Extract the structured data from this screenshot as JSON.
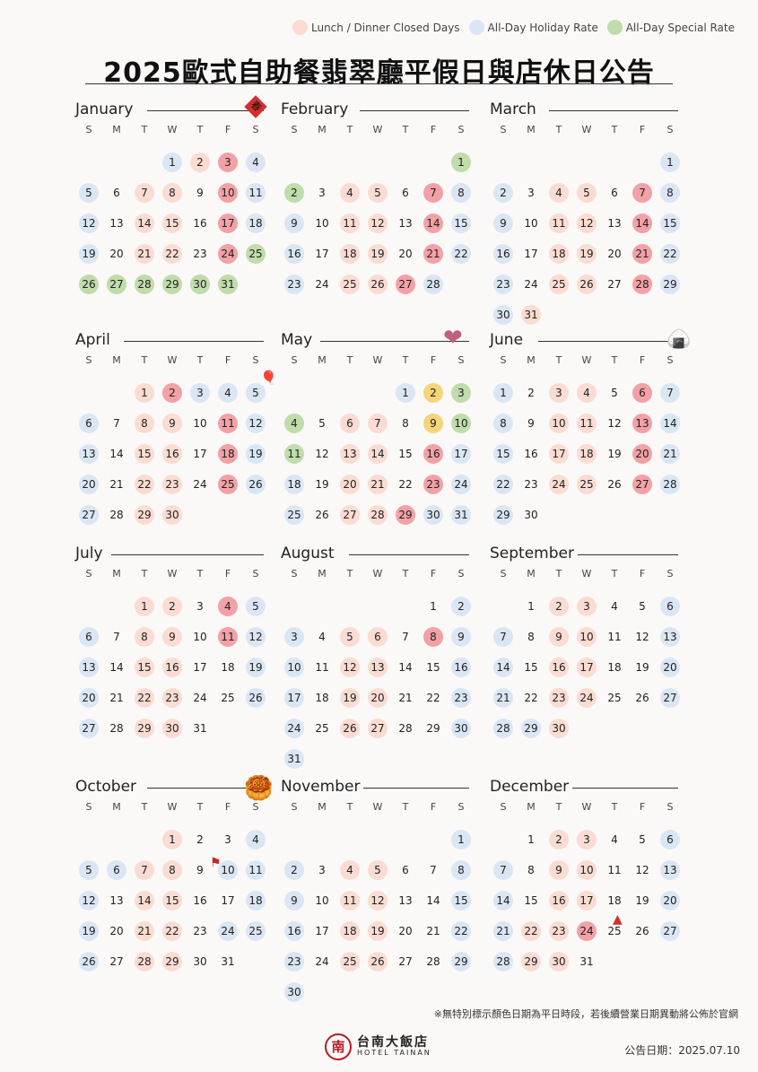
{
  "legend": [
    {
      "label": "Lunch / Dinner Closed Days",
      "color": "#fbdcd2"
    },
    {
      "label": "All-Day Holiday Rate",
      "color": "#dae6f4"
    },
    {
      "label": "All-Day Special Rate",
      "color": "#bfdcaa"
    }
  ],
  "title": "2025歐式自助餐翡翠廳平假日與店休日公告",
  "weekdays": [
    "S",
    "M",
    "T",
    "W",
    "T",
    "F",
    "S"
  ],
  "months": [
    {
      "name": "January",
      "start": 3,
      "days": 31,
      "closed": [
        2,
        7,
        8,
        14,
        15,
        21,
        22
      ],
      "holiday": [
        1,
        4,
        5,
        11,
        12,
        18,
        19
      ],
      "special": [
        25,
        26,
        27,
        28,
        29,
        30,
        31
      ],
      "red": [
        3,
        10,
        17,
        24
      ],
      "gold": []
    },
    {
      "name": "February",
      "start": 6,
      "days": 28,
      "closed": [
        4,
        5,
        11,
        12,
        18,
        19,
        25,
        26
      ],
      "holiday": [
        8,
        9,
        15,
        16,
        22,
        23,
        28
      ],
      "special": [
        1,
        2
      ],
      "red": [
        7,
        14,
        21,
        27
      ],
      "gold": []
    },
    {
      "name": "March",
      "start": 6,
      "days": 31,
      "closed": [
        4,
        5,
        11,
        12,
        18,
        19,
        25,
        26,
        31
      ],
      "holiday": [
        1,
        2,
        8,
        9,
        15,
        16,
        22,
        23,
        29,
        30
      ],
      "special": [],
      "red": [
        7,
        14,
        21,
        28
      ],
      "gold": []
    },
    {
      "name": "April",
      "start": 2,
      "days": 30,
      "closed": [
        1,
        8,
        9,
        15,
        16,
        22,
        23,
        29,
        30
      ],
      "holiday": [
        3,
        4,
        5,
        6,
        12,
        13,
        19,
        20,
        26,
        27
      ],
      "special": [],
      "red": [
        2,
        11,
        18,
        25
      ],
      "gold": []
    },
    {
      "name": "May",
      "start": 4,
      "days": 31,
      "closed": [
        6,
        7,
        13,
        14,
        20,
        21,
        27,
        28
      ],
      "holiday": [
        1,
        17,
        18,
        24,
        25,
        30,
        31
      ],
      "special": [
        3,
        4,
        10,
        11
      ],
      "red": [
        16,
        23,
        29
      ],
      "gold": [
        2,
        9
      ]
    },
    {
      "name": "June",
      "start": 0,
      "days": 30,
      "closed": [
        3,
        4,
        10,
        11,
        17,
        18,
        24,
        25
      ],
      "holiday": [
        1,
        7,
        8,
        14,
        15,
        21,
        22,
        28,
        29
      ],
      "special": [],
      "red": [
        6,
        13,
        20,
        27
      ],
      "gold": []
    },
    {
      "name": "July",
      "start": 2,
      "days": 31,
      "closed": [
        1,
        2,
        8,
        9,
        15,
        16,
        22,
        23,
        29,
        30
      ],
      "holiday": [
        5,
        6,
        12,
        13,
        19,
        20,
        26,
        27
      ],
      "special": [],
      "red": [
        4,
        11
      ],
      "gold": []
    },
    {
      "name": "August",
      "start": 5,
      "days": 31,
      "closed": [
        5,
        6,
        12,
        13,
        19,
        20,
        26,
        27
      ],
      "holiday": [
        2,
        3,
        9,
        10,
        16,
        17,
        23,
        24,
        30,
        31
      ],
      "special": [],
      "red": [
        8
      ],
      "gold": []
    },
    {
      "name": "September",
      "start": 1,
      "days": 30,
      "closed": [
        2,
        3,
        9,
        10,
        16,
        17,
        23,
        24,
        30
      ],
      "holiday": [
        6,
        7,
        13,
        14,
        20,
        21,
        27,
        28,
        29
      ],
      "special": [],
      "red": [],
      "gold": []
    },
    {
      "name": "October",
      "start": 3,
      "days": 31,
      "closed": [
        1,
        7,
        8,
        14,
        15,
        21,
        22,
        28,
        29
      ],
      "holiday": [
        4,
        5,
        6,
        10,
        11,
        12,
        18,
        19,
        24,
        25,
        26
      ],
      "special": [],
      "red": [],
      "gold": []
    },
    {
      "name": "November",
      "start": 6,
      "days": 30,
      "closed": [
        4,
        5,
        11,
        12,
        18,
        19,
        25,
        26
      ],
      "holiday": [
        1,
        2,
        8,
        9,
        15,
        16,
        22,
        23,
        29,
        30
      ],
      "special": [],
      "red": [],
      "gold": []
    },
    {
      "name": "December",
      "start": 1,
      "days": 31,
      "closed": [
        2,
        3,
        9,
        10,
        16,
        17,
        22,
        23,
        29,
        30
      ],
      "holiday": [
        6,
        7,
        13,
        14,
        20,
        21,
        27,
        28
      ],
      "special": [],
      "red": [
        24
      ],
      "gold": []
    }
  ],
  "decorations": [
    {
      "month": 0,
      "icon": "spring-couplet-icon",
      "glyph": "春",
      "color": "#d32f2f"
    },
    {
      "month": 3,
      "icon": "balloon-icon",
      "glyph": "🎈",
      "color": "#f08c8c"
    },
    {
      "month": 4,
      "icon": "mother-child-icon",
      "glyph": "❤",
      "color": "#c06080"
    },
    {
      "month": 5,
      "icon": "zongzi-icon",
      "glyph": "🍙",
      "color": "#f0b020"
    },
    {
      "month": 9,
      "icon": "taiwan-flag-icon",
      "glyph": "⚑",
      "color": "#c62828"
    },
    {
      "month": 9,
      "icon": "mooncake-icon",
      "glyph": "🥮",
      "color": "#e8882a"
    },
    {
      "month": 11,
      "icon": "santa-hat-icon",
      "glyph": "▲",
      "color": "#d32f2f"
    }
  ],
  "footnote": "※無特別標示顏色日期為平日時段，若後續營業日期異動將公佈於官網",
  "logo": {
    "zh": "台南大飯店",
    "en": "HOTEL TAINAN",
    "mark": "南"
  },
  "announce": "公告日期：2025.07.10"
}
